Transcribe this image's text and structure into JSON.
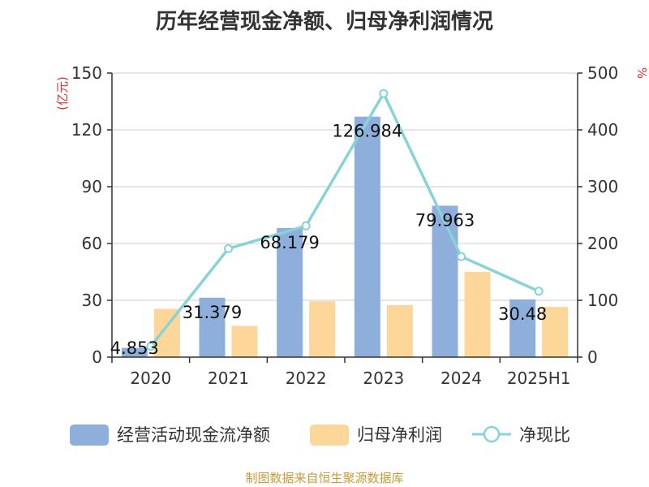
{
  "page": {
    "title": "历年经营现金净额、归母净利润情况",
    "source": "制图数据来自恒生聚源数据库"
  },
  "chart_data": {
    "type": "bar",
    "categories": [
      "2020",
      "2021",
      "2022",
      "2023",
      "2024",
      "2025H1"
    ],
    "series": [
      {
        "name": "经营活动现金流净额",
        "type": "bar",
        "axis": "left",
        "color": "#8eaedb",
        "values": [
          4.853,
          31.379,
          68.179,
          126.984,
          79.963,
          30.48
        ],
        "labels": [
          "4.853",
          "31.379",
          "68.179",
          "126.984",
          "79.963",
          "30.48"
        ]
      },
      {
        "name": "归母净利润",
        "type": "bar",
        "axis": "left",
        "color": "#fdd699",
        "values": [
          25.5,
          16.5,
          29.5,
          27.5,
          45,
          26.5
        ]
      },
      {
        "name": "净现比",
        "type": "line",
        "axis": "right",
        "color": "#88d3d8",
        "values": [
          19,
          191,
          231,
          464,
          177,
          116
        ]
      }
    ],
    "left_axis": {
      "label": "(亿元)",
      "min": 0,
      "max": 150,
      "ticks": [
        0,
        30,
        60,
        90,
        120,
        150
      ]
    },
    "right_axis": {
      "label": "%",
      "min": 0,
      "max": 500,
      "ticks": [
        0,
        100,
        200,
        300,
        400,
        500
      ]
    },
    "grid": true,
    "legend_position": "bottom"
  }
}
